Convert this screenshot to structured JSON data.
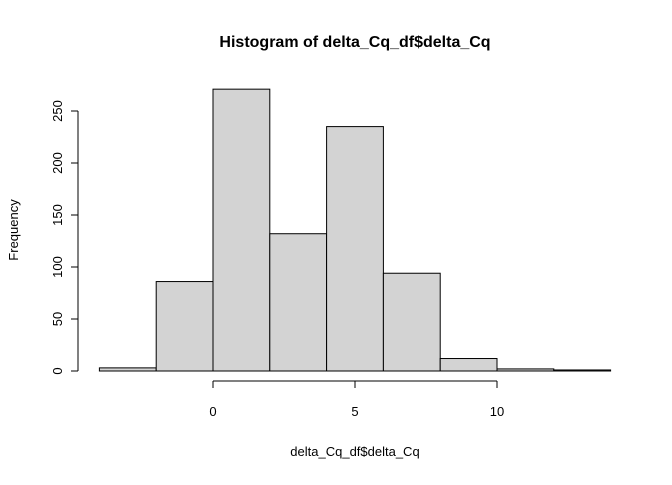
{
  "chart_data": {
    "type": "bar",
    "title": "Histogram of delta_Cq_df$delta_Cq",
    "xlabel": "delta_Cq_df$delta_Cq",
    "ylabel": "Frequency",
    "breaks": [
      -4,
      -2,
      0,
      2,
      4,
      6,
      8,
      10,
      12,
      14
    ],
    "values": [
      3,
      86,
      271,
      132,
      235,
      94,
      12,
      2,
      1
    ],
    "xlim": [
      -4,
      14
    ],
    "ylim": [
      0,
      271
    ],
    "xticks": [
      0,
      5,
      10
    ],
    "xtick_labels": [
      "0",
      "5",
      "10"
    ],
    "yticks": [
      0,
      50,
      100,
      150,
      200,
      250
    ],
    "ytick_labels": [
      "0",
      "50",
      "100",
      "150",
      "200",
      "250"
    ],
    "bar_color": "#d3d3d3",
    "border_color": "#000000",
    "grid": false
  }
}
